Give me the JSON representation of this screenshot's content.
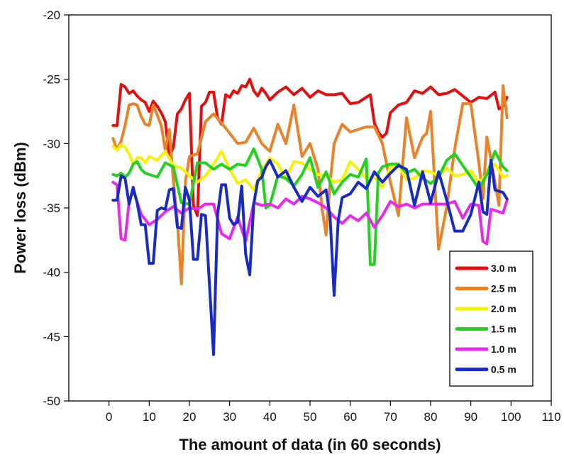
{
  "chart_data": {
    "type": "line",
    "title": "",
    "xlabel": "The amount of data (in 60 seconds)",
    "ylabel": "Power loss (dBm)",
    "xlim": [
      -10,
      110
    ],
    "ylim": [
      -50,
      -20
    ],
    "xticks": [
      0,
      10,
      20,
      30,
      40,
      50,
      60,
      70,
      80,
      90,
      100,
      110
    ],
    "yticks": [
      -20,
      -25,
      -30,
      -35,
      -40,
      -45,
      -50
    ],
    "grid": false,
    "legend_position": "bottom-right",
    "series": [
      {
        "name": "3.0 m",
        "color": "#e01010",
        "x": [
          1,
          2,
          3,
          4,
          5,
          6,
          7,
          8,
          9,
          10,
          11,
          12,
          13,
          14,
          15,
          16,
          17,
          18,
          19,
          20,
          21,
          22,
          23,
          24,
          25,
          26,
          27,
          28,
          29,
          30,
          31,
          32,
          33,
          34,
          35,
          36,
          37,
          38,
          39,
          40,
          42,
          44,
          46,
          48,
          50,
          52,
          54,
          56,
          58,
          60,
          62,
          64,
          65,
          66,
          67,
          68,
          69,
          70,
          72,
          74,
          76,
          78,
          80,
          82,
          84,
          86,
          88,
          90,
          92,
          94,
          96,
          97,
          98,
          99
        ],
        "y": [
          -28.6,
          -28.6,
          -25.4,
          -25.6,
          -26.1,
          -25.9,
          -26.3,
          -26.6,
          -26.8,
          -27.5,
          -26.7,
          -27.1,
          -27.6,
          -28.3,
          -31.0,
          -30.3,
          -27.7,
          -27.3,
          -26.6,
          -26.1,
          -34.8,
          -35.6,
          -27.1,
          -26.8,
          -26.0,
          -26.0,
          -28.0,
          -28.5,
          -26.2,
          -26.4,
          -25.9,
          -26.1,
          -25.5,
          -25.6,
          -25.0,
          -25.9,
          -26.3,
          -25.7,
          -26.1,
          -26.6,
          -26.0,
          -25.6,
          -26.2,
          -25.7,
          -26.4,
          -25.9,
          -26.2,
          -26.2,
          -26.1,
          -26.9,
          -26.8,
          -26.4,
          -26.2,
          -28.4,
          -29.1,
          -29.5,
          -29.2,
          -27.6,
          -27.0,
          -26.8,
          -25.9,
          -26.1,
          -25.6,
          -26.2,
          -26.1,
          -25.8,
          -26.3,
          -26.8,
          -26.4,
          -26.5,
          -26.0,
          -27.3,
          -27.1,
          -26.4
        ]
      },
      {
        "name": "2.5 m",
        "color": "#e8832a",
        "x": [
          1,
          2,
          3,
          4,
          5,
          6,
          7,
          8,
          9,
          10,
          11,
          12,
          13,
          14,
          15,
          16,
          17,
          18,
          19,
          20,
          22,
          24,
          26,
          28,
          30,
          32,
          34,
          36,
          38,
          40,
          42,
          44,
          46,
          48,
          50,
          52,
          53,
          54,
          55,
          56,
          58,
          60,
          62,
          64,
          66,
          68,
          70,
          72,
          74,
          76,
          78,
          79,
          80,
          81,
          82,
          84,
          86,
          88,
          90,
          92,
          93,
          94,
          95,
          96,
          97,
          98,
          99
        ],
        "y": [
          -29.6,
          -30.5,
          -29.8,
          -28.6,
          -27.0,
          -26.9,
          -27.0,
          -27.9,
          -28.5,
          -28.6,
          -27.0,
          -27.8,
          -28.6,
          -30.5,
          -28.9,
          -32.8,
          -36.0,
          -40.9,
          -33.0,
          -31.0,
          -30.8,
          -28.3,
          -27.7,
          -28.4,
          -29.2,
          -30.0,
          -29.9,
          -28.8,
          -30.0,
          -30.6,
          -28.5,
          -30.0,
          -27.0,
          -31.0,
          -30.0,
          -32.0,
          -35.1,
          -37.1,
          -33.0,
          -30.0,
          -28.5,
          -29.1,
          -28.9,
          -28.7,
          -28.7,
          -30.0,
          -33.0,
          -35.6,
          -28.0,
          -31.1,
          -29.5,
          -29.2,
          -27.5,
          -33.0,
          -38.2,
          -34.9,
          -30.4,
          -26.9,
          -26.9,
          -31.5,
          -34.3,
          -29.5,
          -31.2,
          -33.0,
          -34.8,
          -25.5,
          -28.0
        ]
      },
      {
        "name": "2.0 m",
        "color": "#f5f20a",
        "x": [
          1,
          2,
          3,
          4,
          5,
          6,
          7,
          8,
          9,
          10,
          12,
          14,
          16,
          18,
          20,
          22,
          24,
          26,
          28,
          30,
          32,
          34,
          36,
          38,
          40,
          42,
          44,
          46,
          48,
          50,
          52,
          54,
          56,
          58,
          60,
          62,
          64,
          66,
          68,
          70,
          72,
          74,
          76,
          78,
          80,
          82,
          84,
          86,
          88,
          90,
          92,
          94,
          96,
          98,
          99
        ],
        "y": [
          -30.2,
          -30.5,
          -30.1,
          -30.3,
          -30.8,
          -31.6,
          -31.1,
          -31.1,
          -31.5,
          -31.0,
          -31.3,
          -30.6,
          -31.7,
          -31.9,
          -32.5,
          -33.0,
          -32.5,
          -31.6,
          -30.6,
          -32.0,
          -33.1,
          -32.8,
          -33.6,
          -32.1,
          -31.1,
          -31.6,
          -32.7,
          -31.4,
          -31.5,
          -32.0,
          -32.4,
          -32.5,
          -33.0,
          -32.8,
          -31.4,
          -32.0,
          -32.7,
          -32.6,
          -33.4,
          -31.8,
          -31.7,
          -32.8,
          -32.7,
          -32.1,
          -32.2,
          -32.5,
          -31.9,
          -32.5,
          -32.4,
          -32.1,
          -33.0,
          -32.4,
          -31.6,
          -32.6,
          -32.5
        ]
      },
      {
        "name": "1.5 m",
        "color": "#22d21e",
        "x": [
          1,
          2,
          3,
          4,
          5,
          6,
          7,
          8,
          9,
          10,
          12,
          14,
          16,
          18,
          20,
          22,
          24,
          26,
          28,
          30,
          32,
          34,
          36,
          38,
          39,
          40,
          42,
          44,
          46,
          48,
          50,
          52,
          54,
          56,
          58,
          60,
          62,
          64,
          65,
          66,
          67,
          68,
          70,
          72,
          74,
          76,
          78,
          80,
          82,
          84,
          86,
          88,
          90,
          92,
          94,
          96,
          98,
          99
        ],
        "y": [
          -32.4,
          -32.5,
          -32.3,
          -32.6,
          -32.3,
          -31.6,
          -31.4,
          -32.0,
          -32.3,
          -32.4,
          -32.6,
          -31.5,
          -31.8,
          -34.6,
          -34.7,
          -31.5,
          -31.5,
          -32.0,
          -31.6,
          -32.0,
          -31.6,
          -31.7,
          -30.4,
          -32.0,
          -35.0,
          -34.8,
          -32.5,
          -32.7,
          -33.3,
          -32.4,
          -31.1,
          -33.4,
          -32.2,
          -33.9,
          -33.0,
          -32.4,
          -32.6,
          -31.2,
          -39.4,
          -39.4,
          -32.3,
          -31.8,
          -31.6,
          -31.6,
          -32.3,
          -32.0,
          -32.7,
          -33.1,
          -32.6,
          -31.3,
          -30.8,
          -31.7,
          -32.6,
          -33.5,
          -32.4,
          -30.6,
          -31.8,
          -32.1
        ]
      },
      {
        "name": "1.0 m",
        "color": "#e52be8",
        "x": [
          1,
          2,
          3,
          4,
          5,
          6,
          8,
          10,
          12,
          14,
          16,
          18,
          20,
          22,
          24,
          26,
          28,
          30,
          32,
          34,
          36,
          38,
          40,
          42,
          44,
          46,
          48,
          50,
          52,
          54,
          56,
          58,
          60,
          62,
          64,
          66,
          68,
          70,
          72,
          74,
          76,
          78,
          80,
          82,
          84,
          86,
          88,
          90,
          92,
          93,
          94,
          95,
          96,
          98,
          99
        ],
        "y": [
          -33.0,
          -33.2,
          -37.4,
          -37.5,
          -34.5,
          -33.6,
          -35.5,
          -36.3,
          -35.9,
          -35.3,
          -34.9,
          -35.4,
          -35.0,
          -35.1,
          -34.7,
          -34.7,
          -37.0,
          -37.4,
          -35.7,
          -37.6,
          -34.6,
          -34.8,
          -34.7,
          -35.0,
          -34.3,
          -34.7,
          -34.1,
          -34.3,
          -34.6,
          -35.0,
          -35.7,
          -36.2,
          -35.6,
          -36.0,
          -35.4,
          -36.5,
          -35.6,
          -34.5,
          -34.9,
          -34.7,
          -35.0,
          -34.7,
          -34.7,
          -34.7,
          -34.7,
          -34.5,
          -35.8,
          -34.7,
          -34.8,
          -37.6,
          -37.8,
          -35.1,
          -35.2,
          -35.4,
          -34.4
        ]
      },
      {
        "name": "0.5 m",
        "color": "#1a2bc4",
        "x": [
          1,
          2,
          3,
          4,
          5,
          6,
          7,
          8,
          9,
          10,
          11,
          12,
          13,
          14,
          15,
          16,
          17,
          18,
          19,
          20,
          21,
          22,
          23,
          24,
          25,
          26,
          27,
          28,
          29,
          30,
          31,
          32,
          33,
          34,
          35,
          36,
          37,
          38,
          39,
          40,
          42,
          44,
          46,
          48,
          50,
          52,
          54,
          55,
          56,
          57,
          58,
          60,
          62,
          64,
          66,
          68,
          70,
          72,
          74,
          76,
          78,
          80,
          82,
          84,
          86,
          88,
          90,
          92,
          93,
          94,
          95,
          96,
          98,
          99
        ],
        "y": [
          -34.4,
          -34.4,
          -32.5,
          -32.7,
          -34.7,
          -33.4,
          -34.6,
          -36.3,
          -36.3,
          -39.3,
          -39.3,
          -35.2,
          -35.0,
          -35.1,
          -33.6,
          -33.5,
          -36.5,
          -36.6,
          -33.4,
          -34.4,
          -39.0,
          -39.0,
          -35.5,
          -35.6,
          -41.0,
          -46.4,
          -35.5,
          -33.2,
          -33.2,
          -35.8,
          -36.3,
          -36.1,
          -33.3,
          -38.6,
          -40.2,
          -34.7,
          -32.9,
          -32.6,
          -31.8,
          -31.3,
          -32.6,
          -32.1,
          -33.4,
          -34.5,
          -33.4,
          -34.1,
          -33.6,
          -35.7,
          -41.8,
          -36.0,
          -34.2,
          -33.9,
          -33.0,
          -33.5,
          -32.2,
          -33.0,
          -32.3,
          -31.7,
          -32.0,
          -34.8,
          -32.2,
          -34.6,
          -32.2,
          -34.4,
          -36.8,
          -36.8,
          -35.5,
          -33.0,
          -35.3,
          -35.5,
          -31.3,
          -33.6,
          -33.8,
          -34.3
        ]
      }
    ]
  }
}
